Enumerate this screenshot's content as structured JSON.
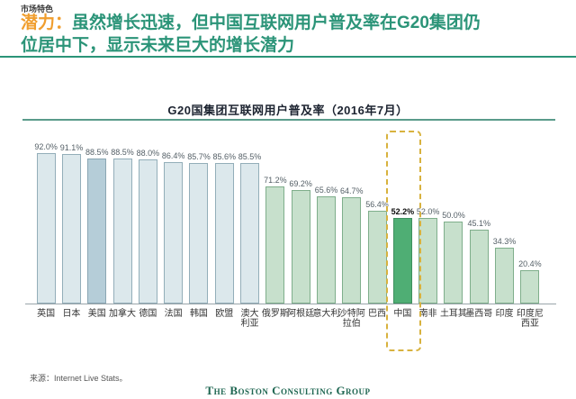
{
  "page": {
    "eyebrow": "市场特色",
    "headline_prefix": "潜力：",
    "headline_line1": "虽然增长迅速，但中国互联网用户普及率在G20集团仍",
    "headline_line2": "位居中下，显示未来巨大的增长潜力",
    "accent_orange": "#F09E2E",
    "accent_teal": "#2B9478"
  },
  "chart_data": {
    "type": "bar",
    "title": "G20国集团互联网用户普及率（2016年7月）",
    "categories": [
      "英国",
      "日本",
      "美国",
      "加拿大",
      "德国",
      "法国",
      "韩国",
      "欧盟",
      "澳大利亚",
      "俄罗斯",
      "阿根廷",
      "意大利",
      "沙特阿拉伯",
      "巴西",
      "中国",
      "南非",
      "土耳其",
      "墨西哥",
      "印度",
      "印度尼西亚"
    ],
    "tick_labels": [
      "英国",
      "日本",
      "美国",
      "加拿大",
      "德国",
      "法国",
      "韩国",
      "欧盟",
      "澳大\n利亚",
      "俄罗斯",
      "阿根廷",
      "意大利",
      "沙特阿\n拉伯",
      "巴西",
      "中国",
      "南非",
      "土耳其",
      "墨西哥",
      "印度",
      "印度尼\n西亚"
    ],
    "values": [
      92.0,
      91.1,
      88.5,
      88.5,
      88.0,
      86.4,
      85.7,
      85.6,
      85.5,
      71.2,
      69.2,
      65.6,
      64.7,
      56.4,
      52.2,
      52.0,
      50.0,
      45.1,
      34.3,
      20.4
    ],
    "value_labels": [
      "92.0%",
      "91.1%",
      "88.5%",
      "88.5%",
      "88.0%",
      "86.4%",
      "85.7%",
      "85.6%",
      "85.5%",
      "71.2%",
      "69.2%",
      "65.6%",
      "64.7%",
      "56.4%",
      "52.2%",
      "52.0%",
      "50.0%",
      "45.1%",
      "34.3%",
      "20.4%"
    ],
    "groups": [
      "blue",
      "blue",
      "blue_dark",
      "blue",
      "blue",
      "blue",
      "blue",
      "blue",
      "blue",
      "green",
      "green",
      "green",
      "green",
      "green",
      "green_dark",
      "green",
      "green",
      "green",
      "green",
      "green"
    ],
    "highlight_index": 14,
    "ylim": [
      0,
      100
    ],
    "grid": false,
    "legend": "none",
    "colors": {
      "blue": {
        "fill": "#DCE8EC",
        "border": "#93AEB9"
      },
      "blue_dark": {
        "fill": "#B5CDD8",
        "border": "#8AA6B3"
      },
      "green": {
        "fill": "#C7E0CC",
        "border": "#7FAE8B"
      },
      "green_dark": {
        "fill": "#4FAE74",
        "border": "#3E8F5E"
      },
      "highlight_box": "#D8B23E"
    }
  },
  "footer": {
    "source": "来源：Internet Live Stats。",
    "logo": "The Boston Consulting Group"
  }
}
